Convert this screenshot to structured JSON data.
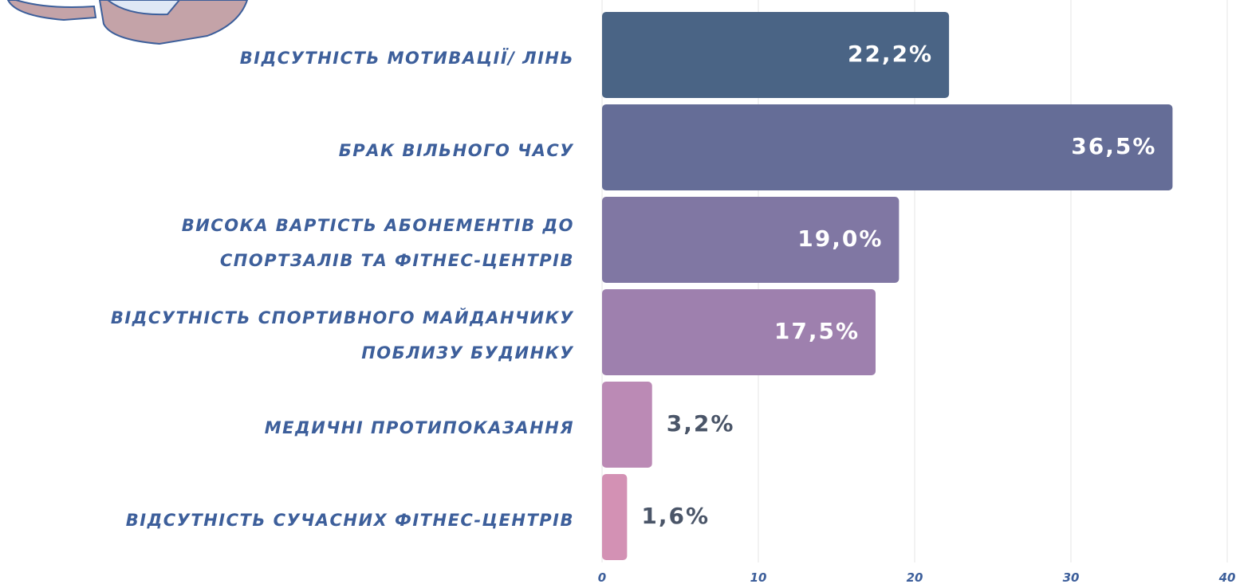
{
  "chart_data": {
    "type": "barh",
    "categories": [
      "ВІДСУТНІСТЬ МОТИВАЦІЇ/ ЛІНЬ",
      "БРАК ВІЛЬНОГО ЧАСУ",
      "ВИСОКА ВАРТІСТЬ АБОНЕМЕНТІВ ДО\nСПОРТЗАЛІВ ТА ФІТНЕС-ЦЕНТРІВ",
      "ВІДСУТНІСТЬ СПОРТИВНОГО МАЙДАНЧИКУ\nПОБЛИЗУ БУДИНКУ",
      "МЕДИЧНІ ПРОТИПОКАЗАННЯ",
      "ВІДСУТНІСТЬ СУЧАСНИХ ФІТНЕС-ЦЕНТРІВ"
    ],
    "values": [
      22.2,
      36.5,
      19.0,
      17.5,
      3.2,
      1.6
    ],
    "value_labels": [
      "22,2%",
      "36,5%",
      "19,0%",
      "17,5%",
      "3,2%",
      "1,6%"
    ],
    "colors": [
      "#4a6485",
      "#656d97",
      "#8077a3",
      "#9e80ae",
      "#bb8ab5",
      "#d391b4"
    ],
    "xlim": [
      0,
      40
    ],
    "xticks": [
      0,
      10,
      20,
      30,
      40
    ],
    "grid": true
  }
}
